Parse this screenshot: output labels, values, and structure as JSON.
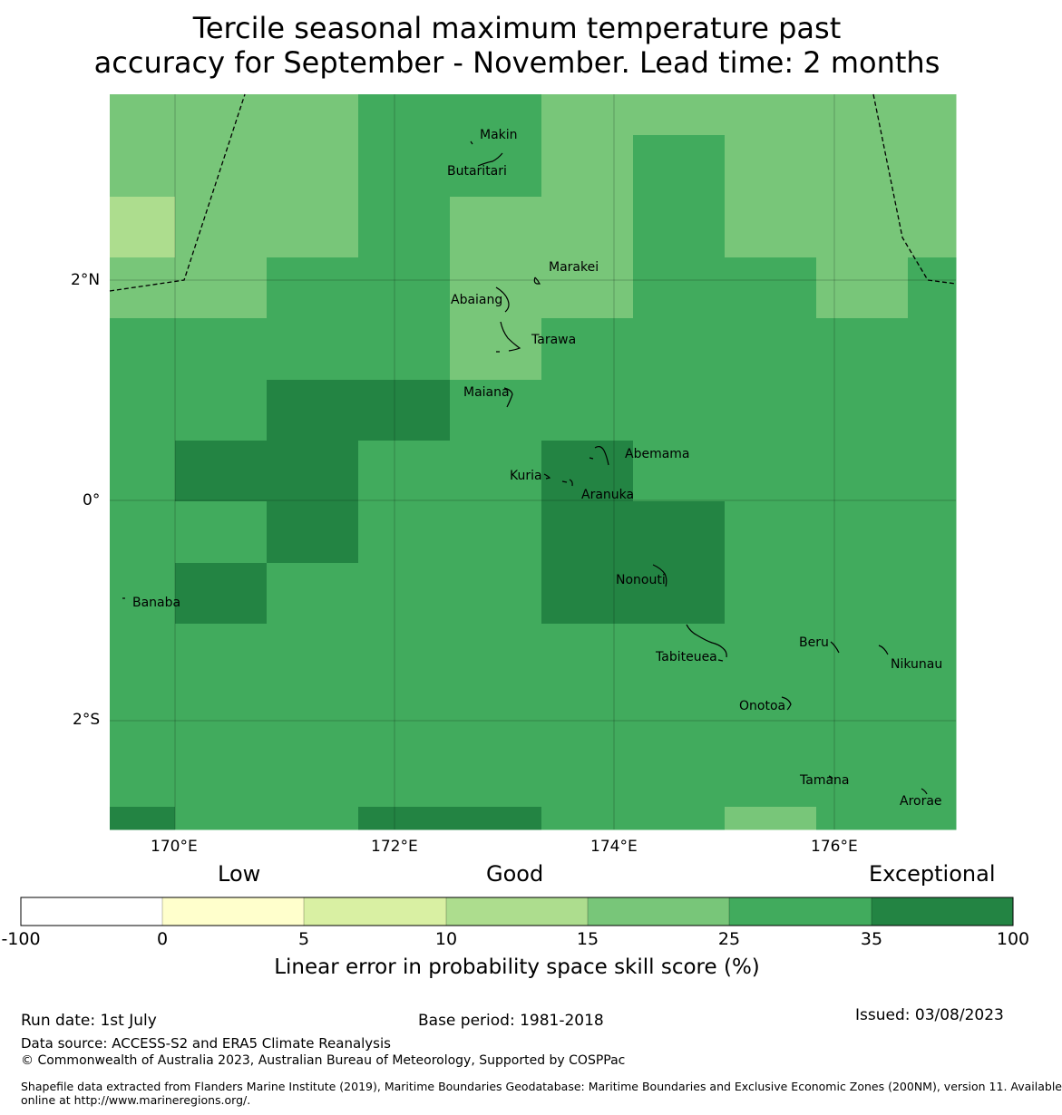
{
  "title": {
    "line1": "Tercile seasonal maximum temperature past",
    "line2": "accuracy for September - November. Lead time: 2 months"
  },
  "map": {
    "lat_labels": [
      "2°N",
      "0°",
      "2°S"
    ],
    "lon_labels": [
      "170°E",
      "172°E",
      "174°E",
      "176°E"
    ],
    "places": [
      "Makin",
      "Butaritari",
      "Marakei",
      "Abaiang",
      "Tarawa",
      "Maiana",
      "Abemama",
      "Kuria",
      "Aranuka",
      "Nonouti",
      "Banaba",
      "Tabiteuea",
      "Beru",
      "Nikunau",
      "Onotoa",
      "Tamana",
      "Arorae"
    ],
    "skill_categories": [
      {
        "range": "-100 to 0",
        "color": "#ffffff"
      },
      {
        "range": "0 to 5",
        "color": "#ffffcc"
      },
      {
        "range": "5 to 10",
        "color": "#d9f0a3"
      },
      {
        "range": "10 to 15",
        "color": "#addd8e"
      },
      {
        "range": "15 to 25",
        "color": "#78c679"
      },
      {
        "range": "25 to 35",
        "color": "#41ab5d"
      },
      {
        "range": "35 to 100",
        "color": "#238443"
      }
    ]
  },
  "colorbar": {
    "headings": {
      "low": "Low",
      "good": "Good",
      "exceptional": "Exceptional"
    },
    "ticks": [
      "-100",
      "0",
      "5",
      "10",
      "15",
      "25",
      "35",
      "100"
    ],
    "label": "Linear error in probability space skill score (%)"
  },
  "footer": {
    "run_date": "Run date: 1st July",
    "base_period": "Base period: 1981-2018",
    "issued": "Issued: 03/08/2023",
    "data_source": "Data source: ACCESS-S2 and ERA5 Climate Reanalysis",
    "copyright": "© Commonwealth of Australia 2023, Australian Bureau of Meteorology, Supported by COSPPac",
    "shapefile_line1": "Shapefile data extracted from Flanders Marine Institute (2019), Maritime Boundaries Geodatabase: Maritime Boundaries and Exclusive Economic Zones (200NM), version 11. Available",
    "shapefile_line2": "online at http://www.marineregions.org/."
  }
}
